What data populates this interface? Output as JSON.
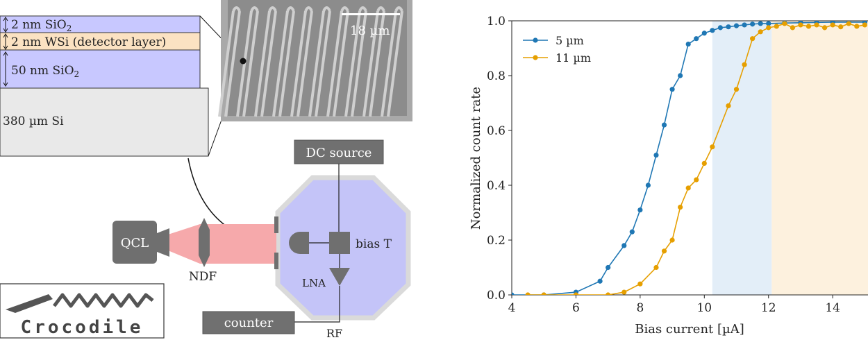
{
  "stack": {
    "layer1": "2 nm SiO",
    "layer1_sub": "2",
    "layer2": "2 nm WSi (detector layer)",
    "layer3": "50 nm SiO",
    "layer3_sub": "2",
    "substrate": "380 µm Si"
  },
  "sem": {
    "scale": "18 µm"
  },
  "setup": {
    "dc_source": "DC source",
    "qcl": "QCL",
    "ndf": "NDF",
    "bias_t": "bias T",
    "lna": "LNA",
    "counter": "counter",
    "rf": "RF"
  },
  "logo": {
    "text": "Crocodile"
  },
  "colors": {
    "oxide": "#c8c8ff",
    "wsi": "#fbe2c2",
    "si": "#e9e9e9",
    "cryostat": "#c4c4f8",
    "beam": "#f6a9ab",
    "blue": "#1f77b4",
    "orange": "#e69f00",
    "band_blue": "#e3eef8",
    "band_orange": "#fdf1de"
  },
  "chart_data": {
    "type": "line",
    "xlabel": "Bias current [µA]",
    "ylabel": "Normalized count rate",
    "xlim": [
      4,
      15.1
    ],
    "ylim": [
      0,
      1.0
    ],
    "xticks": [
      4,
      6,
      8,
      10,
      12,
      14
    ],
    "yticks": [
      0.0,
      0.2,
      0.4,
      0.6,
      0.8,
      1.0
    ],
    "legend_position": "top-left",
    "shaded_regions": [
      {
        "x": [
          10.25,
          12.1
        ],
        "color": "blue"
      },
      {
        "x": [
          12.1,
          15.1
        ],
        "color": "orange"
      }
    ],
    "series": [
      {
        "name": "5 µm",
        "color": "blue",
        "x": [
          4.0,
          5.0,
          6.0,
          6.75,
          7.0,
          7.5,
          7.75,
          8.0,
          8.25,
          8.5,
          8.75,
          9.0,
          9.25,
          9.5,
          9.75,
          10.0,
          10.25,
          10.5,
          10.75,
          11.0,
          11.25,
          11.5,
          11.75,
          12.0,
          12.5,
          13.0,
          13.5,
          14.0,
          14.5,
          15.0
        ],
        "values": [
          0.0,
          0.0,
          0.01,
          0.05,
          0.1,
          0.18,
          0.23,
          0.31,
          0.4,
          0.51,
          0.62,
          0.75,
          0.8,
          0.915,
          0.935,
          0.955,
          0.965,
          0.975,
          0.978,
          0.982,
          0.985,
          0.988,
          0.99,
          0.99,
          0.992,
          0.993,
          0.994,
          0.995,
          0.995,
          0.995
        ]
      },
      {
        "name": "11 µm",
        "color": "orange",
        "x": [
          4.5,
          5.0,
          6.0,
          7.0,
          7.5,
          8.0,
          8.5,
          8.75,
          9.0,
          9.25,
          9.5,
          9.75,
          10.0,
          10.25,
          10.75,
          11.0,
          11.25,
          11.5,
          11.75,
          12.0,
          12.25,
          12.5,
          12.75,
          13.0,
          13.25,
          13.5,
          13.75,
          14.0,
          14.25,
          14.5,
          14.75,
          15.0
        ],
        "values": [
          0.0,
          0.0,
          0.0,
          0.0,
          0.01,
          0.04,
          0.1,
          0.16,
          0.2,
          0.32,
          0.39,
          0.42,
          0.48,
          0.54,
          0.69,
          0.75,
          0.84,
          0.935,
          0.96,
          0.975,
          0.98,
          0.99,
          0.975,
          0.985,
          0.98,
          0.985,
          0.975,
          0.985,
          0.978,
          0.99,
          0.98,
          0.985
        ]
      }
    ]
  }
}
